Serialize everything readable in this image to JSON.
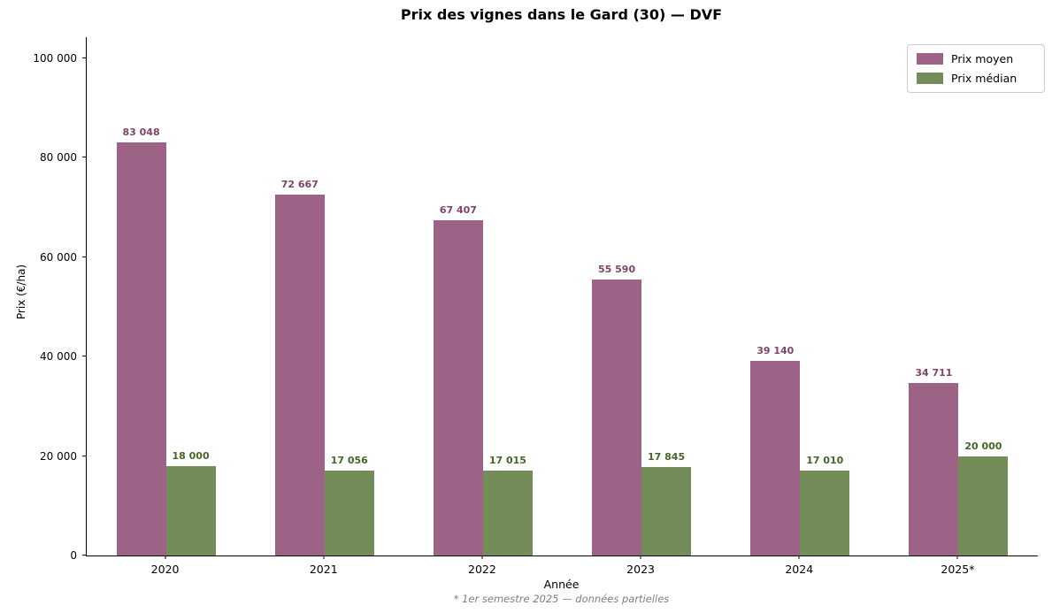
{
  "title": "Prix des vignes dans le Gard (30) — DVF",
  "chart_data": {
    "type": "bar",
    "title": "Prix des vignes dans le Gard (30) — DVF",
    "categories": [
      "2020",
      "2021",
      "2022",
      "2023",
      "2024",
      "2025*"
    ],
    "series": [
      {
        "name": "Prix moyen",
        "color": "#9c6386",
        "label_color": "#7f4569",
        "values": [
          83048,
          72667,
          67407,
          55590,
          39140,
          34711
        ],
        "value_labels": [
          "83 048",
          "72 667",
          "67 407",
          "55 590",
          "39 140",
          "34 711"
        ]
      },
      {
        "name": "Prix médian",
        "color": "#748c58",
        "label_color": "#466628",
        "values": [
          18000,
          17056,
          17015,
          17845,
          17010,
          20000
        ],
        "value_labels": [
          "18 000",
          "17 056",
          "17 015",
          "17 845",
          "17 010",
          "20 000"
        ]
      }
    ],
    "xlabel": "Année",
    "ylabel": "Prix (€/ha)",
    "ylim": [
      0,
      104000
    ],
    "yticks": [
      0,
      20000,
      40000,
      60000,
      80000,
      100000
    ],
    "ytick_labels": [
      "0",
      "20 000",
      "40 000",
      "60 000",
      "80 000",
      "100 000"
    ],
    "grid": false,
    "legend_position": "upper right",
    "caption": "* 1er semestre 2025 — données partielles"
  }
}
